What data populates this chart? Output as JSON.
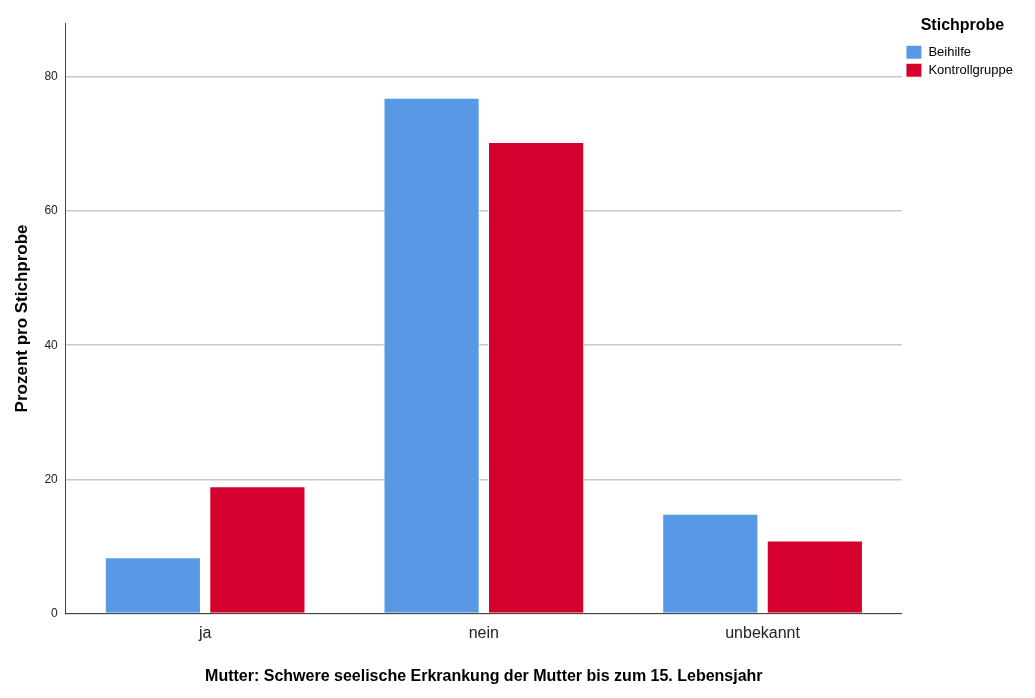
{
  "chart_data": {
    "type": "bar",
    "xlabel": "Mutter: Schwere seelische Erkrankung der Mutter bis zum 15. Lebensjahr",
    "ylabel": "Prozent pro Stichprobe",
    "legend_title": "Stichprobe",
    "categories": [
      "ja",
      "nein",
      "unbekannt"
    ],
    "series": [
      {
        "name": "Beihilfe",
        "color": "#5899e5",
        "values": [
          8.4,
          76.9,
          14.9
        ]
      },
      {
        "name": "Kontrollgruppe",
        "color": "#d5002d",
        "values": [
          19.0,
          70.3,
          10.9
        ]
      }
    ],
    "ylim": [
      0,
      88
    ],
    "yticks": [
      0,
      20,
      40,
      60,
      80
    ],
    "grid": "y",
    "legend": "top right"
  }
}
